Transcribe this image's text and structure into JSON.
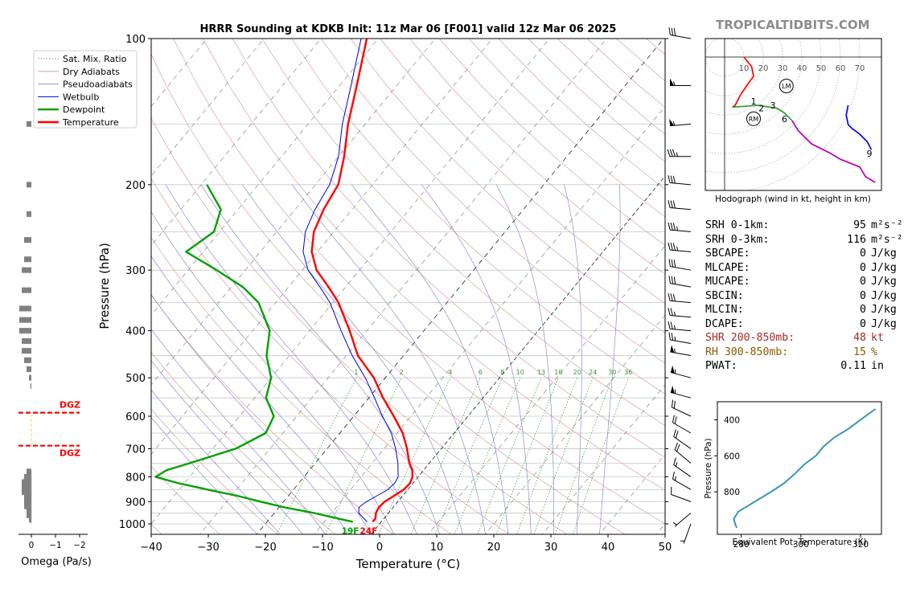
{
  "brand": "TROPICALTIDBITS.COM",
  "skewt": {
    "title": "HRRR Sounding at KDKB Init: 11z Mar 06 [F001] valid 12z Mar 06 2025",
    "xlabel": "Temperature (°C)",
    "ylabel": "Pressure (hPa)",
    "x_ticks": [
      "−40",
      "−30",
      "−20",
      "−10",
      "0",
      "10",
      "20",
      "30",
      "40",
      "50"
    ],
    "y_ticks": [
      "100",
      "200",
      "300",
      "400",
      "500",
      "600",
      "700",
      "800",
      "900",
      "1000"
    ],
    "surface_dewpoint_label": "19F",
    "surface_temp_label": "24F",
    "legend": [
      "Sat. Mix. Ratio",
      "Dry Adiabats",
      "Pseudoadiabats",
      "Wetbulb",
      "Dewpoint",
      "Temperature"
    ],
    "mixing_ratio_labels": [
      "1",
      "2",
      "4",
      "6",
      "8",
      "10",
      "13",
      "16",
      "20",
      "24",
      "30",
      "36"
    ],
    "colors": {
      "temperature": "#ff0000",
      "dewpoint": "#00a000",
      "wetbulb": "#0000d8",
      "dry": "#d79090",
      "moist": "#7a7ad0",
      "mix": "#2e9a2e"
    }
  },
  "hodograph": {
    "caption": "Hodograph (wind in kt, height in km)",
    "ring_labels": [
      "10",
      "20",
      "30",
      "40",
      "50",
      "60",
      "70"
    ],
    "height_labels": [
      "1",
      "2",
      "3",
      "6",
      "9"
    ],
    "storm_motion_labels": [
      "LM",
      "RM"
    ]
  },
  "theta_e": {
    "xlabel": "Equivalent Pot. Temperature (K)",
    "ylabel": "Pressure (hPa)",
    "x_ticks": [
      "280",
      "300",
      "320"
    ],
    "y_ticks": [
      "400",
      "600",
      "800"
    ]
  },
  "omega": {
    "xlabel": "Omega (Pa/s)",
    "x_ticks": [
      "0",
      "−1",
      "−2"
    ],
    "dgz_label": "DGZ"
  },
  "stats": [
    {
      "key": "SRH 0-1km:",
      "value": "95",
      "unit": "m²s⁻²",
      "color": "#000000"
    },
    {
      "key": "SRH 0-3km:",
      "value": "116",
      "unit": "m²s⁻²",
      "color": "#000000"
    },
    {
      "key": "SBCAPE:",
      "value": "0",
      "unit": "J/kg",
      "color": "#000000"
    },
    {
      "key": "MLCAPE:",
      "value": "0",
      "unit": "J/kg",
      "color": "#000000"
    },
    {
      "key": "MUCAPE:",
      "value": "0",
      "unit": "J/kg",
      "color": "#000000"
    },
    {
      "key": "SBCIN:",
      "value": "0",
      "unit": "J/kg",
      "color": "#000000"
    },
    {
      "key": "MLCIN:",
      "value": "0",
      "unit": "J/kg",
      "color": "#000000"
    },
    {
      "key": "DCAPE:",
      "value": "0",
      "unit": "J/kg",
      "color": "#000000"
    },
    {
      "key": "SHR 200-850mb:",
      "value": "48",
      "unit": "kt",
      "color": "#a52a2a"
    },
    {
      "key": "RH 300-850mb:",
      "value": "15",
      "unit": "%",
      "color": "#8b5a00"
    },
    {
      "key": "PWAT:",
      "value": "0.11",
      "unit": "in",
      "color": "#000000"
    }
  ],
  "chart_data": [
    {
      "type": "line",
      "title": "HRRR Sounding at KDKB Init: 11z Mar 06 [F001] valid 12z Mar 06 2025",
      "xlabel": "Temperature (°C)",
      "ylabel": "Pressure (hPa)",
      "xlim": [
        -40,
        50
      ],
      "ylim": [
        1050,
        100
      ],
      "y_scale": "log",
      "x_skewed": true,
      "legend_position": "top-left",
      "grid": true,
      "series": [
        {
          "name": "Temperature",
          "p": [
            990,
            975,
            950,
            925,
            900,
            875,
            850,
            825,
            800,
            775,
            750,
            700,
            650,
            600,
            550,
            500,
            450,
            400,
            350,
            325,
            300,
            275,
            250,
            225,
            200,
            175,
            150,
            125,
            100
          ],
          "t": [
            -1.5,
            -1.5,
            -2.2,
            -2.5,
            -2.3,
            -1.5,
            -0.7,
            -0.5,
            -1.0,
            -2.0,
            -3.5,
            -6.0,
            -9.0,
            -13,
            -17.5,
            -22,
            -28,
            -33,
            -39,
            -43,
            -47.5,
            -51,
            -53.5,
            -55,
            -56,
            -59,
            -63,
            -67,
            -72
          ]
        },
        {
          "name": "Dewpoint",
          "p": [
            990,
            975,
            950,
            925,
            900,
            875,
            850,
            825,
            800,
            775,
            750,
            700,
            650,
            600,
            550,
            500,
            450,
            400,
            350,
            325,
            300,
            275,
            250,
            225,
            200
          ],
          "t": [
            -5,
            -8,
            -13,
            -19,
            -24,
            -29,
            -35,
            -41,
            -46,
            -45,
            -42,
            -36,
            -33,
            -34,
            -38,
            -40,
            -44,
            -47,
            -53,
            -58,
            -65,
            -73,
            -71,
            -73,
            -79
          ]
        },
        {
          "name": "Wetbulb",
          "p": [
            990,
            975,
            950,
            925,
            900,
            875,
            850,
            825,
            800,
            775,
            750,
            700,
            650,
            600,
            550,
            500,
            450,
            400,
            350,
            325,
            300,
            275,
            250,
            225,
            200,
            175,
            150,
            125,
            100
          ],
          "t": [
            -2.5,
            -3.5,
            -5.2,
            -6.0,
            -5.5,
            -4.5,
            -3.5,
            -3.2,
            -3.5,
            -4.5,
            -5.5,
            -8.0,
            -11,
            -15,
            -19,
            -23.5,
            -29,
            -34.5,
            -40.5,
            -44.5,
            -49,
            -52.5,
            -55,
            -56.5,
            -57.5,
            -60,
            -64,
            -68,
            -73
          ]
        }
      ],
      "wind_barbs": {
        "p": [
          100,
          125,
          150,
          175,
          200,
          225,
          250,
          275,
          300,
          325,
          350,
          375,
          400,
          425,
          450,
          500,
          550,
          600,
          650,
          700,
          750,
          800,
          850,
          900,
          950,
          1000
        ],
        "dir_deg": [
          280,
          270,
          265,
          270,
          275,
          275,
          275,
          275,
          280,
          280,
          275,
          275,
          275,
          280,
          280,
          285,
          285,
          295,
          300,
          305,
          310,
          305,
          300,
          290,
          230,
          200
        ],
        "speed_kt": [
          30,
          55,
          55,
          35,
          30,
          30,
          35,
          35,
          30,
          30,
          30,
          25,
          25,
          25,
          55,
          55,
          55,
          20,
          20,
          20,
          20,
          15,
          15,
          10,
          5,
          5
        ]
      },
      "surface_labels": {
        "dewpoint": "19F",
        "temperature": "24F"
      }
    },
    {
      "type": "line",
      "xlabel": "",
      "ylabel": "",
      "caption": "Hodograph (wind in kt, height in km)",
      "rings_kt": [
        10,
        20,
        30,
        40,
        50,
        60,
        70
      ],
      "series": [
        {
          "color": "#ff0000",
          "u": [
            10,
            14,
            15,
            12,
            8,
            5.5,
            4
          ],
          "v": [
            0,
            -5,
            -10,
            -14,
            -20,
            -25,
            -26
          ]
        },
        {
          "color": "#2ca02c",
          "u": [
            4,
            11,
            17,
            27,
            31,
            35
          ],
          "v": [
            -26,
            -25.5,
            -25,
            -26.5,
            -29,
            -33
          ]
        },
        {
          "color": "#b000b0",
          "u": [
            35,
            38,
            45,
            55,
            60,
            70,
            73,
            78
          ],
          "v": [
            -33,
            -38,
            -45,
            -50,
            -53,
            -57,
            -62,
            -65
          ]
        },
        {
          "color": "#0000ff",
          "u": [
            64,
            63,
            64,
            66,
            70,
            74,
            76
          ],
          "v": [
            -25,
            -30,
            -35,
            -37,
            -40,
            -44,
            -48
          ]
        }
      ],
      "height_labels": [
        {
          "label": "1",
          "u": 15,
          "v": -23
        },
        {
          "label": "2",
          "u": 19,
          "v": -26.5
        },
        {
          "label": "3",
          "u": 25,
          "v": -25
        },
        {
          "label": "6",
          "u": 31,
          "v": -32
        },
        {
          "label": "9",
          "u": 75,
          "v": -50
        }
      ],
      "storm_motion": [
        {
          "label": "LM",
          "u": 32,
          "v": -15
        },
        {
          "label": "RM",
          "u": 15,
          "v": -32
        }
      ]
    },
    {
      "type": "line",
      "xlabel": "Equivalent Pot. Temperature (K)",
      "ylabel": "Pressure (hPa)",
      "xlim": [
        272,
        327
      ],
      "ylim": [
        1000,
        300
      ],
      "series": [
        {
          "color": "#3a96b4",
          "theta_e": [
            278.5,
            278,
            277.5,
            279,
            281,
            285,
            290,
            294.5,
            298,
            301,
            305,
            307.5,
            311,
            316,
            320,
            325
          ],
          "p": [
            1000,
            980,
            950,
            910,
            890,
            850,
            800,
            750,
            700,
            650,
            600,
            550,
            500,
            450,
            400,
            340
          ]
        }
      ]
    },
    {
      "type": "bar",
      "xlabel": "Omega (Pa/s)",
      "xlim": [
        0.5,
        -2.3
      ],
      "orientation": "horizontal",
      "p": [
        150,
        200,
        230,
        260,
        285,
        300,
        330,
        360,
        380,
        400,
        420,
        440,
        460,
        480,
        500,
        520,
        780,
        800,
        820,
        840,
        860,
        880,
        900,
        920,
        940,
        960,
        980
      ],
      "omega": [
        -0.1,
        -0.1,
        -0.1,
        -0.15,
        -0.15,
        -0.2,
        -0.2,
        -0.25,
        -0.25,
        -0.25,
        -0.2,
        -0.2,
        -0.15,
        -0.1,
        -0.05,
        -0.02,
        -0.1,
        -0.15,
        -0.2,
        -0.2,
        -0.2,
        -0.15,
        -0.15,
        -0.15,
        -0.1,
        -0.1,
        -0.05
      ],
      "dgz_pressures": [
        590,
        690
      ],
      "dgz_label": "DGZ"
    }
  ]
}
